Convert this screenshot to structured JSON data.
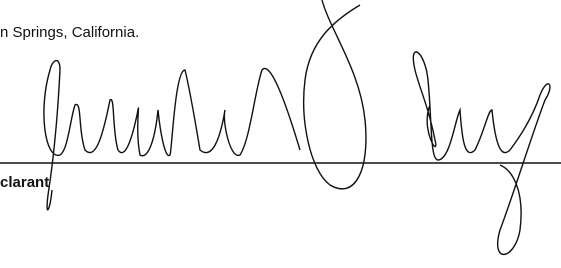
{
  "location_text": "n Springs, California.",
  "signature_label": "clarant"
}
